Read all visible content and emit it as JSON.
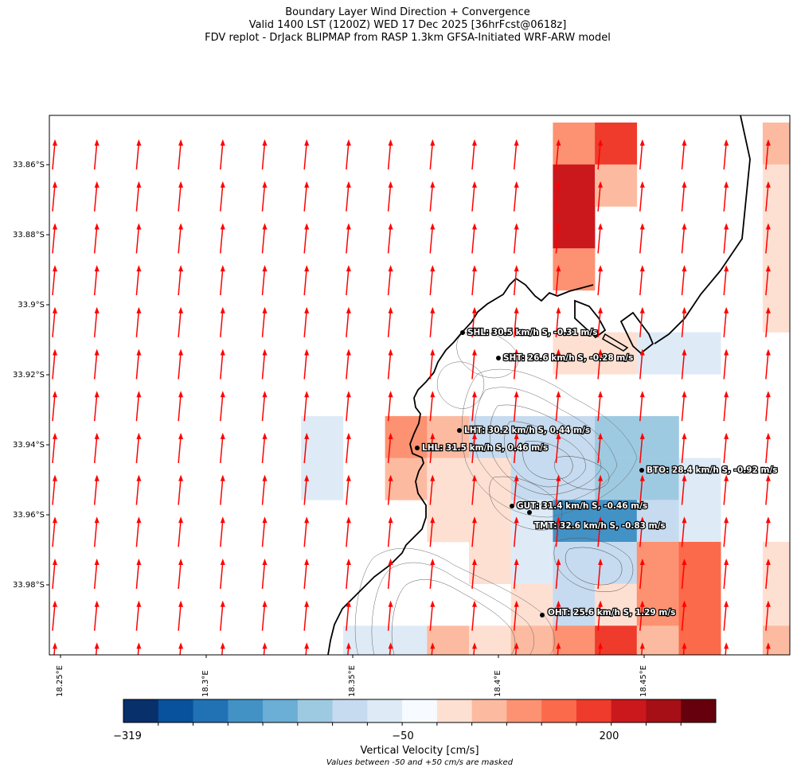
{
  "header": {
    "title_line1": "Boundary Layer Wind Direction + Convergence",
    "title_line2": "Valid 1400 LST (1200Z) WED 17 Dec 2025 [36hrFcst@0618z]",
    "title_line3": "FDV replot - DrJack BLIPMAP from RASP 1.3km GFSA-Initiated WRF-ARW model"
  },
  "axes": {
    "lat_ticks": [
      "33.86°S",
      "33.88°S",
      "33.9°S",
      "33.92°S",
      "33.94°S",
      "33.96°S",
      "33.98°S"
    ],
    "lon_ticks": [
      "18.25°E",
      "18.3°E",
      "18.35°E",
      "18.4°E",
      "18.45°E"
    ]
  },
  "stations": [
    {
      "label": "SHL: 30.5 km/h S, -0.31 m/s"
    },
    {
      "label": "SHT: 26.6 km/h S, -0.28 m/s"
    },
    {
      "label": "LHT: 30.2 km/h S, 0.44 m/s"
    },
    {
      "label": "LHL: 31.5 km/h S, 0.46 m/s"
    },
    {
      "label": "BTO: 28.4 km/h S, -0.92 m/s"
    },
    {
      "label": "GUT: 31.4 km/h S, -0.46 m/s"
    },
    {
      "label": "TMT: 32.6 km/h S, -0.83 m/s"
    },
    {
      "label": "OHT: 25.6 km/h S, 1.29 m/s"
    }
  ],
  "colorbar": {
    "tick_min": "−319",
    "tick_mid": "−50",
    "tick_max": "200",
    "label": "Vertical Velocity [cm/s]",
    "note": "Values between -50 and +50 cm/s are masked",
    "colors": [
      "#08306b",
      "#08519c",
      "#2171b5",
      "#4292c6",
      "#6baed6",
      "#9ecae1",
      "#c6dbef",
      "#deebf7",
      "#f7fbff",
      "#fee0d2",
      "#fcbba1",
      "#fc9272",
      "#fb6a4a",
      "#ef3b2c",
      "#cb181d",
      "#a50f15",
      "#67000d"
    ]
  },
  "wind": {
    "direction": "S",
    "arrow_color": "#ff0000"
  },
  "coast_color": "#000000"
}
